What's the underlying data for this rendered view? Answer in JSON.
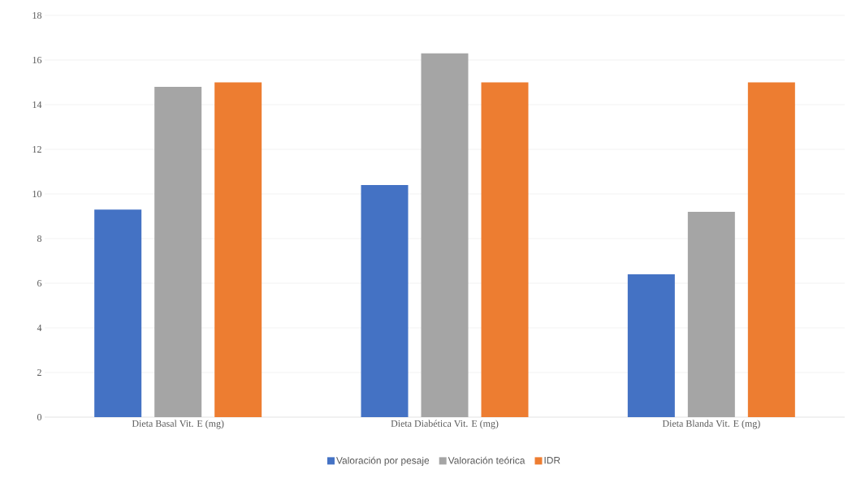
{
  "chart_data": {
    "type": "bar",
    "categories": [
      "Dieta Basal Vit. E (mg)",
      "Dieta Diabética Vit. E (mg)",
      "Dieta Blanda Vit. E (mg)"
    ],
    "series": [
      {
        "name": "Valoración por pesaje",
        "color": "#4472c4",
        "values": [
          9.3,
          10.4,
          6.4
        ]
      },
      {
        "name": "Valoración teórica",
        "color": "#a5a5a5",
        "values": [
          14.8,
          16.3,
          9.2
        ]
      },
      {
        "name": "IDR",
        "color": "#ed7d31",
        "values": [
          15,
          15,
          15
        ]
      }
    ],
    "ylim": [
      0,
      18
    ],
    "yticks": [
      0,
      2,
      4,
      6,
      8,
      10,
      12,
      14,
      16,
      18
    ],
    "grid": "y",
    "legend": "bottom"
  }
}
